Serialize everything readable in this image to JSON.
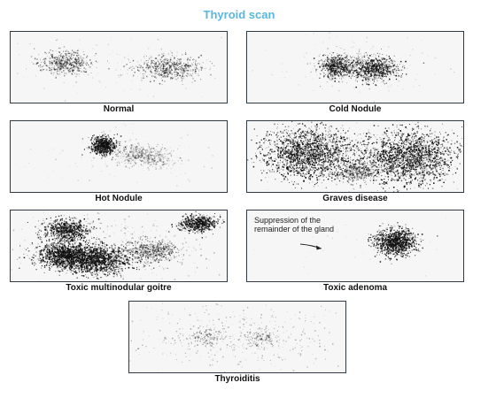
{
  "title": "Thyroid scan",
  "panels": [
    {
      "caption": "Normal"
    },
    {
      "caption": "Cold Nodule"
    },
    {
      "caption": "Hot Nodule"
    },
    {
      "caption": "Graves disease"
    },
    {
      "caption": "Toxic multinodular goitre"
    },
    {
      "caption": "Toxic adenoma",
      "annotation": "Suppression of the remainder of the gland"
    },
    {
      "caption": "Thyroiditis"
    }
  ]
}
